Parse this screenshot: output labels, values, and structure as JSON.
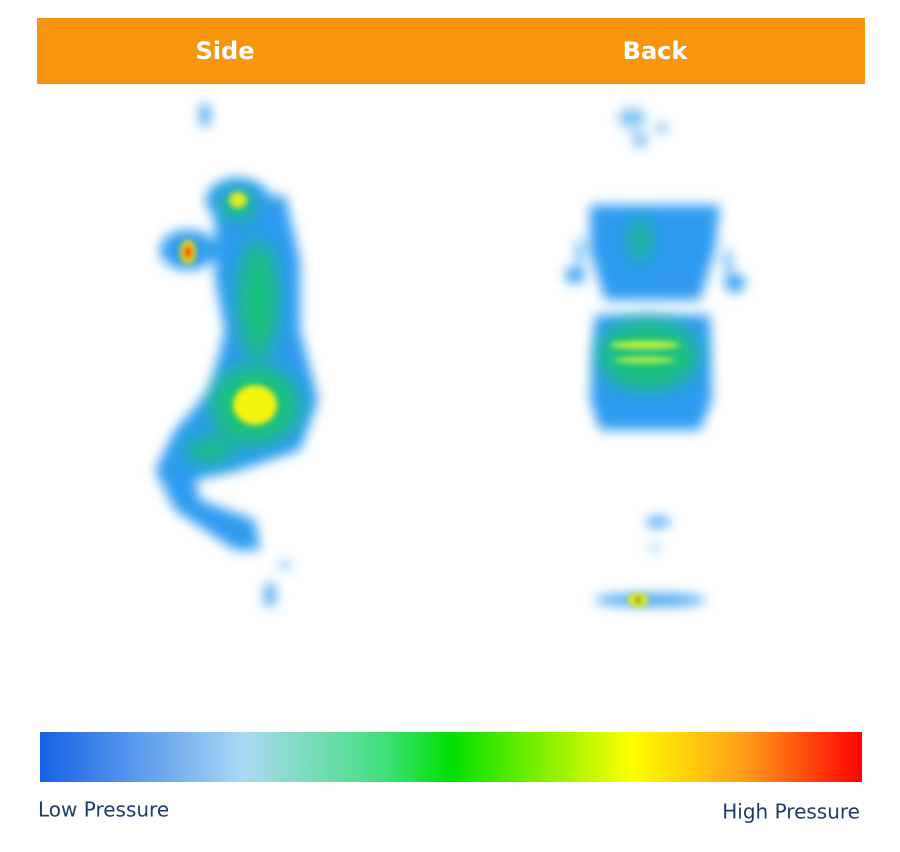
{
  "header": {
    "labels": [
      "Side",
      "Back"
    ]
  },
  "legend": {
    "low": "Low Pressure",
    "high": "High Pressure"
  }
}
